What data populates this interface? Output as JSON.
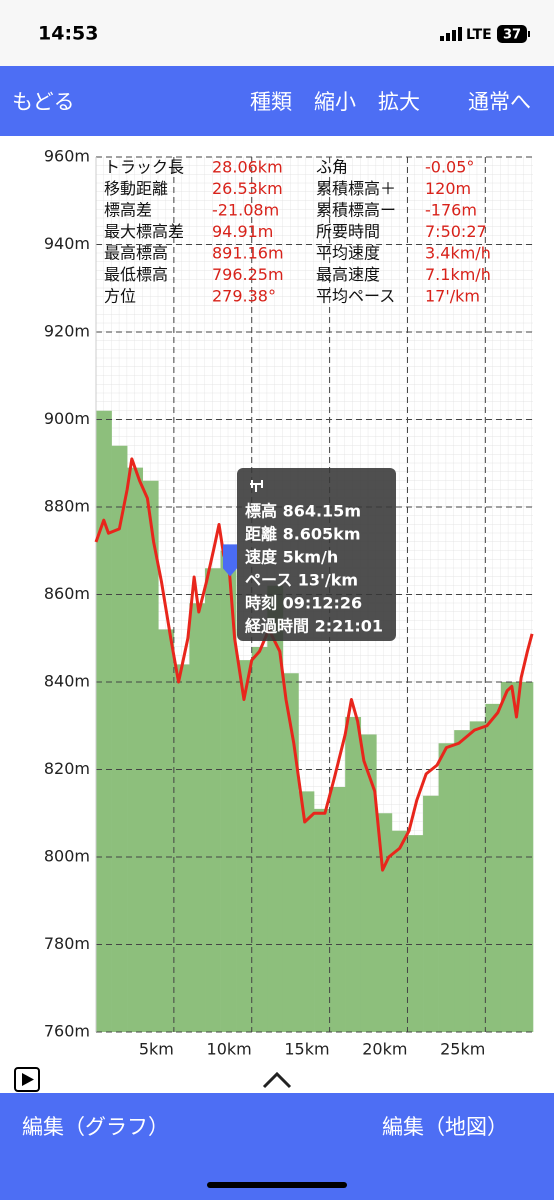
{
  "status_bar": {
    "time": "14:53",
    "network": "LTE",
    "battery": "37"
  },
  "nav_bar": {
    "back": "もどる",
    "actions": [
      "種類",
      "縮小",
      "拡大",
      "通常へ"
    ]
  },
  "stats": {
    "rows": [
      [
        "トラック長",
        "28.06km",
        "ふ角",
        "-0.05°"
      ],
      [
        "移動距離",
        "26.53km",
        "累積標高＋",
        "120m"
      ],
      [
        "標高差",
        "-21.08m",
        "累積標高ー",
        "-176m"
      ],
      [
        "最大標高差",
        "94.91m",
        "所要時間",
        "7:50:27"
      ],
      [
        "最高標高",
        "891.16m",
        "平均速度",
        "3.4km/h"
      ],
      [
        "最低標高",
        "796.25m",
        "最高速度",
        "7.1km/h"
      ],
      [
        "方位",
        "279.38°",
        "平均ペース",
        "17'/km"
      ]
    ]
  },
  "chart_data": {
    "type": "line",
    "x": [
      0,
      0.5,
      0.8,
      1.5,
      2.0,
      2.3,
      2.8,
      3.3,
      3.7,
      4.2,
      4.8,
      5.3,
      5.9,
      6.3,
      6.6,
      7.1,
      7.6,
      7.9,
      8.2,
      8.55,
      8.9,
      9.5,
      10.0,
      10.5,
      11.1,
      11.8,
      12.2,
      12.7,
      13.4,
      14.0,
      14.7,
      15.3,
      16.0,
      16.4,
      16.8,
      17.2,
      17.9,
      18.4,
      18.8,
      19.5,
      20.1,
      20.6,
      21.2,
      21.9,
      22.5,
      23.3,
      24.3,
      25.1,
      25.8,
      26.4,
      26.7,
      27.0,
      27.3,
      27.7,
      28.0
    ],
    "series": [
      {
        "color": "#e8261c",
        "values": [
          872,
          877,
          874,
          875,
          884,
          891,
          886,
          882,
          872,
          863,
          850,
          840,
          850,
          864,
          856,
          863,
          871,
          876,
          869,
          866,
          850,
          836,
          845,
          847,
          852,
          847,
          836,
          826,
          808,
          810,
          810,
          818,
          828,
          836,
          831,
          822,
          815,
          797,
          800,
          802,
          806,
          813,
          819,
          821,
          825,
          826,
          829,
          830,
          833,
          838,
          839,
          832,
          841,
          847,
          851
        ]
      }
    ],
    "area": {
      "color": "#8dbf7c",
      "bins": [
        0,
        1,
        2,
        3,
        4,
        5,
        6,
        7,
        8,
        9,
        10,
        11,
        12,
        13,
        14,
        15,
        16,
        17,
        18,
        19,
        20,
        21,
        22,
        23,
        24,
        25,
        26,
        27,
        28,
        28.06
      ],
      "values": [
        902,
        894,
        889,
        886,
        852,
        844,
        858,
        866,
        870,
        845,
        848,
        862,
        842,
        815,
        811,
        816,
        832,
        828,
        810,
        806,
        805,
        814,
        826,
        829,
        831,
        835,
        840,
        840,
        840
      ]
    },
    "cursor": {
      "x": 8.605,
      "y": 864.15,
      "color": "#4a6cf4"
    },
    "xlim": [
      0,
      28.06
    ],
    "ylim": [
      760,
      960
    ],
    "xticks": [
      {
        "value": 5,
        "label": "5km"
      },
      {
        "value": 10,
        "label": "10km"
      },
      {
        "value": 15,
        "label": "15km"
      },
      {
        "value": 20,
        "label": "20km"
      },
      {
        "value": 25,
        "label": "25km"
      }
    ],
    "yticks": [
      {
        "value": 760,
        "label": "760m"
      },
      {
        "value": 780,
        "label": "780m"
      },
      {
        "value": 800,
        "label": "800m"
      },
      {
        "value": 820,
        "label": "820m"
      },
      {
        "value": 840,
        "label": "840m"
      },
      {
        "value": 860,
        "label": "860m"
      },
      {
        "value": 880,
        "label": "880m"
      },
      {
        "value": 900,
        "label": "900m"
      },
      {
        "value": 920,
        "label": "920m"
      },
      {
        "value": 940,
        "label": "940m"
      },
      {
        "value": 960,
        "label": "960m"
      }
    ],
    "grid": true
  },
  "tooltip": {
    "lines": [
      "標高 864.15m",
      "距離 8.605km",
      "速度 5km/h",
      "ペース 13'/km",
      "時刻 09:12:26",
      "経過時間 2:21:01"
    ]
  },
  "bottom_bar": {
    "left": "編集（グラフ）",
    "right": "編集（地図）"
  }
}
